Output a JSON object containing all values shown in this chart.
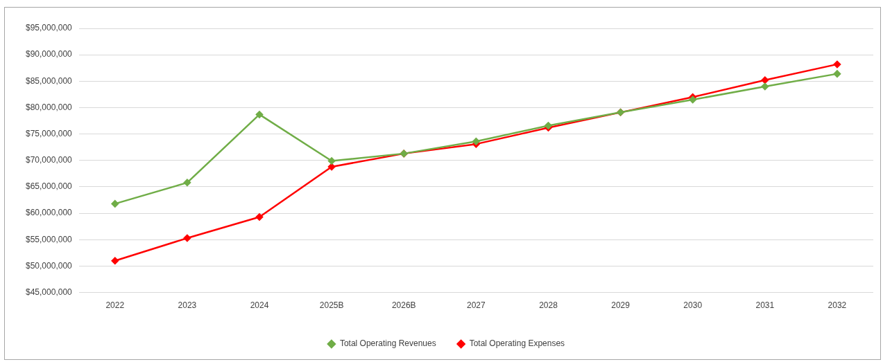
{
  "chart_data": {
    "type": "line",
    "categories": [
      "2022",
      "2023",
      "2024",
      "2025B",
      "2026B",
      "2027",
      "2028",
      "2029",
      "2030",
      "2031",
      "2032"
    ],
    "series": [
      {
        "name": "Total Operating Revenues",
        "color": "#70ad47",
        "values": [
          61800000,
          65800000,
          78700000,
          69900000,
          71300000,
          73600000,
          76600000,
          79100000,
          81500000,
          84000000,
          86400000
        ]
      },
      {
        "name": "Total Operating Expenses",
        "color": "#ff0000",
        "values": [
          51000000,
          55300000,
          59300000,
          68800000,
          71300000,
          73100000,
          76200000,
          79100000,
          82000000,
          85200000,
          88200000
        ]
      }
    ],
    "ylim": [
      45000000,
      95000000
    ],
    "yticks": [
      {
        "value": 45000000,
        "label": "$45,000,000"
      },
      {
        "value": 50000000,
        "label": "$50,000,000"
      },
      {
        "value": 55000000,
        "label": "$55,000,000"
      },
      {
        "value": 60000000,
        "label": "$60,000,000"
      },
      {
        "value": 65000000,
        "label": "$65,000,000"
      },
      {
        "value": 70000000,
        "label": "$70,000,000"
      },
      {
        "value": 75000000,
        "label": "$75,000,000"
      },
      {
        "value": 80000000,
        "label": "$80,000,000"
      },
      {
        "value": 85000000,
        "label": "$85,000,000"
      },
      {
        "value": 90000000,
        "label": "$90,000,000"
      },
      {
        "value": 95000000,
        "label": "$95,000,000"
      }
    ],
    "grid": "y",
    "legend": "bottom",
    "marker": "diamond",
    "line_style": "solid"
  }
}
